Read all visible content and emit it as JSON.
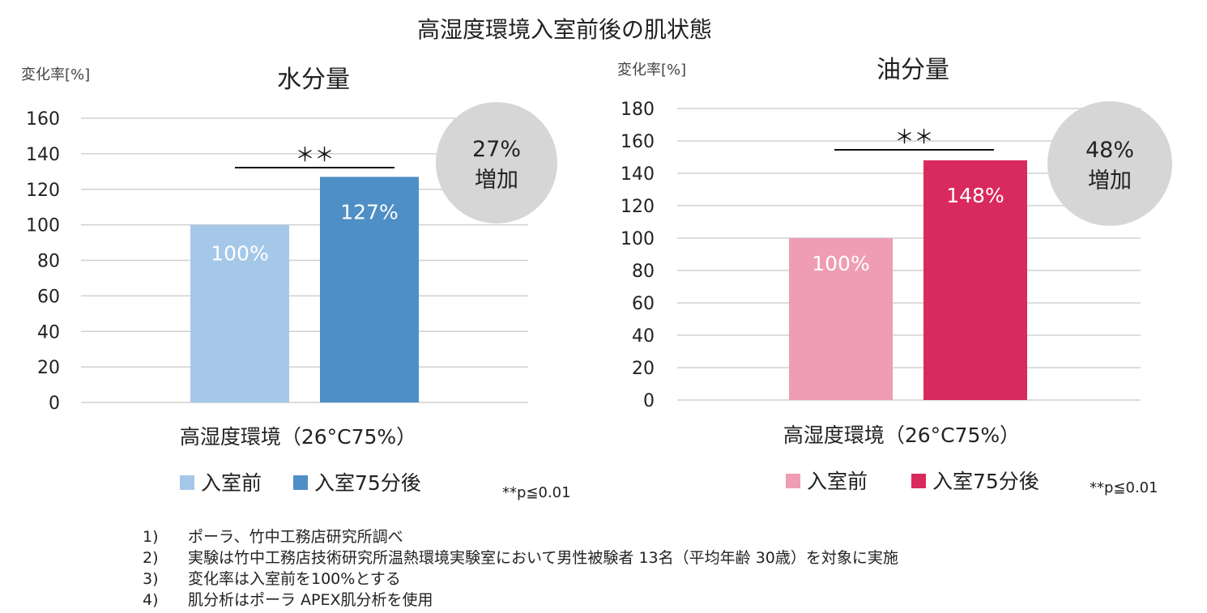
{
  "figure_title": "高湿度環境入室前後の肌状態",
  "chart_data": [
    {
      "type": "bar",
      "title": "水分量",
      "ylabel": "変化率[%]",
      "xlabel": "高湿度環境（26°C75%）",
      "categories": [
        "高湿度環境（26°C75%）"
      ],
      "ylim": [
        0,
        160
      ],
      "yticks": [
        0,
        20,
        40,
        60,
        80,
        100,
        120,
        140,
        160
      ],
      "grid": true,
      "legend_position": "bottom",
      "series": [
        {
          "name": "入室前",
          "values": [
            100
          ],
          "color": "#a6c8e8",
          "data_label": "100%"
        },
        {
          "name": "入室75分後",
          "values": [
            127
          ],
          "color": "#4e8fc5",
          "data_label": "127%"
        }
      ],
      "significance": "＊＊",
      "badge": {
        "line1": "27%",
        "line2": "増加"
      },
      "p_note": "**p≦0.01"
    },
    {
      "type": "bar",
      "title": "油分量",
      "ylabel": "変化率[%]",
      "xlabel": "高湿度環境（26°C75%）",
      "categories": [
        "高湿度環境（26°C75%）"
      ],
      "ylim": [
        0,
        180
      ],
      "yticks": [
        0,
        20,
        40,
        60,
        80,
        100,
        120,
        140,
        160,
        180
      ],
      "grid": true,
      "legend_position": "bottom",
      "series": [
        {
          "name": "入室前",
          "values": [
            100
          ],
          "color": "#ee9db4",
          "data_label": "100%"
        },
        {
          "name": "入室75分後",
          "values": [
            148
          ],
          "color": "#d92a5e",
          "data_label": "148%"
        }
      ],
      "significance": "＊＊",
      "badge": {
        "line1": "48%",
        "line2": "増加"
      },
      "p_note": "**p≦0.01"
    }
  ],
  "notes": [
    {
      "num": "1)",
      "text": "ポーラ、竹中工務店研究所調べ"
    },
    {
      "num": "2)",
      "text": "実験は竹中工務店技術研究所温熱環境実験室において男性被験者 13名（平均年齢 30歳）を対象に実施"
    },
    {
      "num": "3)",
      "text": "変化率は入室前を100%とする"
    },
    {
      "num": "4)",
      "text": "肌分析はポーラ APEX肌分析を使用"
    }
  ],
  "colors": {
    "grid": "#d0d0d0",
    "badge": "#d6d6d6",
    "text": "#222222"
  }
}
